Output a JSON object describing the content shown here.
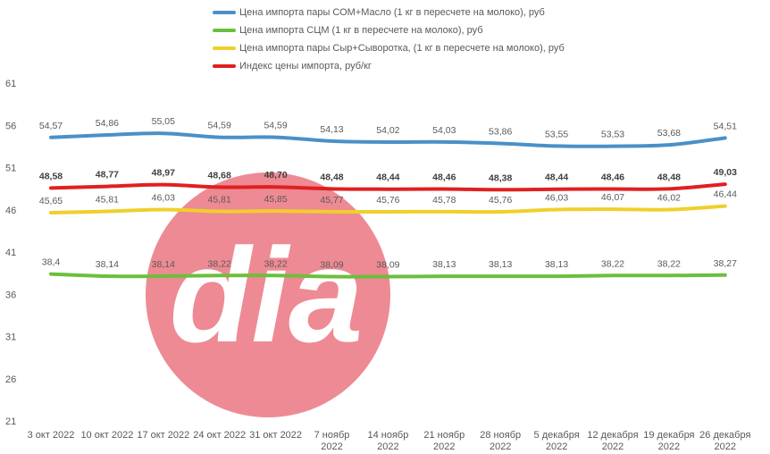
{
  "chart_data": {
    "type": "line",
    "title": "",
    "xlabel": "",
    "ylabel": "",
    "ylim": [
      21,
      61
    ],
    "yticks": [
      21,
      26,
      31,
      36,
      41,
      46,
      51,
      56,
      61
    ],
    "grid": false,
    "legend_position": "top",
    "categories": [
      [
        "3 окт 2022"
      ],
      [
        "10 окт 2022"
      ],
      [
        "17 окт 2022"
      ],
      [
        "24 окт 2022"
      ],
      [
        "31 окт 2022"
      ],
      [
        "7 ноябр",
        "2022"
      ],
      [
        "14 ноябр",
        "2022"
      ],
      [
        "21 ноябр",
        "2022"
      ],
      [
        "28 ноябр",
        "2022"
      ],
      [
        "5 декабря",
        "2022"
      ],
      [
        "12 декабря",
        "2022"
      ],
      [
        "19 декабря",
        "2022"
      ],
      [
        "26 декабря",
        "2022"
      ]
    ],
    "series": [
      {
        "name": "Цена импорта пары СОМ+Масло  (1 кг в пересчете на молоко), руб",
        "color": "#4a90c8",
        "bold_labels": false,
        "values": [
          54.57,
          54.86,
          55.05,
          54.59,
          54.59,
          54.13,
          54.02,
          54.03,
          53.86,
          53.55,
          53.53,
          53.68,
          54.51
        ],
        "labels": [
          "54,57",
          "54,86",
          "55,05",
          "54,59",
          "54,59",
          "54,13",
          "54,02",
          "54,03",
          "53,86",
          "53,55",
          "53,53",
          "53,68",
          "54,51"
        ]
      },
      {
        "name": "Цена импорта СЦМ (1 кг в пересчете на молоко), руб",
        "color": "#6cbf3c",
        "bold_labels": false,
        "values": [
          38.4,
          38.14,
          38.14,
          38.22,
          38.22,
          38.09,
          38.09,
          38.13,
          38.13,
          38.13,
          38.22,
          38.22,
          38.27
        ],
        "labels": [
          "38,4",
          "38,14",
          "38,14",
          "38,22",
          "38,22",
          "38,09",
          "38,09",
          "38,13",
          "38,13",
          "38,13",
          "38,22",
          "38,22",
          "38,27"
        ]
      },
      {
        "name": "Цена импорта пары Сыр+Сыворотка, (1 кг в пересчете на молоко), руб",
        "color": "#f0cf2c",
        "bold_labels": false,
        "values": [
          45.65,
          45.81,
          46.03,
          45.81,
          45.85,
          45.77,
          45.76,
          45.78,
          45.76,
          46.03,
          46.07,
          46.02,
          46.44
        ],
        "labels": [
          "45,65",
          "45,81",
          "46,03",
          "45,81",
          "45,85",
          "45,77",
          "45,76",
          "45,78",
          "45,76",
          "46,03",
          "46,07",
          "46,02",
          "46,44"
        ]
      },
      {
        "name": "Индекс цены импорта, руб/кг",
        "color": "#e02020",
        "bold_labels": true,
        "values": [
          48.58,
          48.77,
          48.97,
          48.68,
          48.7,
          48.48,
          48.44,
          48.46,
          48.38,
          48.44,
          48.46,
          48.48,
          49.03
        ],
        "labels": [
          "48,58",
          "48,77",
          "48,97",
          "48,68",
          "48,70",
          "48,48",
          "48,44",
          "48,46",
          "48,38",
          "48,44",
          "48,46",
          "48,48",
          "49,03"
        ]
      }
    ]
  },
  "watermark": {
    "text": "dia",
    "circle_color": "#ee8a93",
    "text_color": "#ffffff"
  }
}
